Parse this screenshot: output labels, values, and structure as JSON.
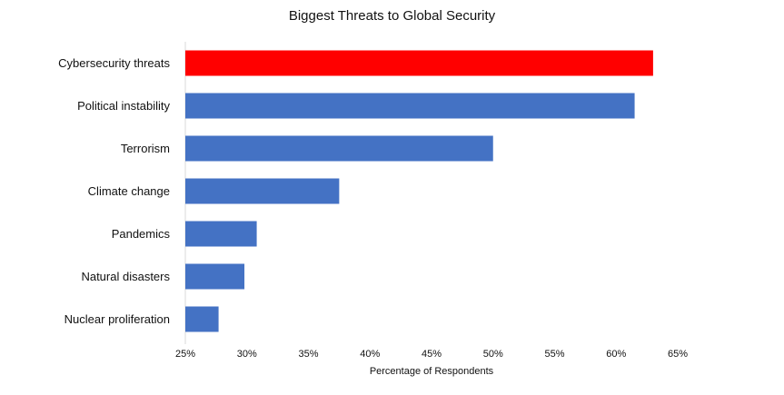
{
  "chart_data": {
    "type": "bar",
    "orientation": "horizontal",
    "title": "Biggest Threats to Global Security",
    "xlabel": "Percentage of Respondents",
    "ylabel": "",
    "categories": [
      "Cybersecurity threats",
      "Political instability",
      "Terrorism",
      "Climate change",
      "Pandemics",
      "Natural disasters",
      "Nuclear proliferation"
    ],
    "values": [
      63,
      61.5,
      50,
      37.5,
      30.8,
      29.8,
      27.7
    ],
    "xlim": [
      25,
      65
    ],
    "xticks": [
      "25%",
      "30%",
      "35%",
      "40%",
      "45%",
      "50%",
      "55%",
      "60%",
      "65%"
    ],
    "highlight_index": 0,
    "colors": {
      "highlight": "#ff0000",
      "bar": "#4472c4",
      "axis": "#d9d9d9"
    },
    "grid": false,
    "legend": "none"
  }
}
